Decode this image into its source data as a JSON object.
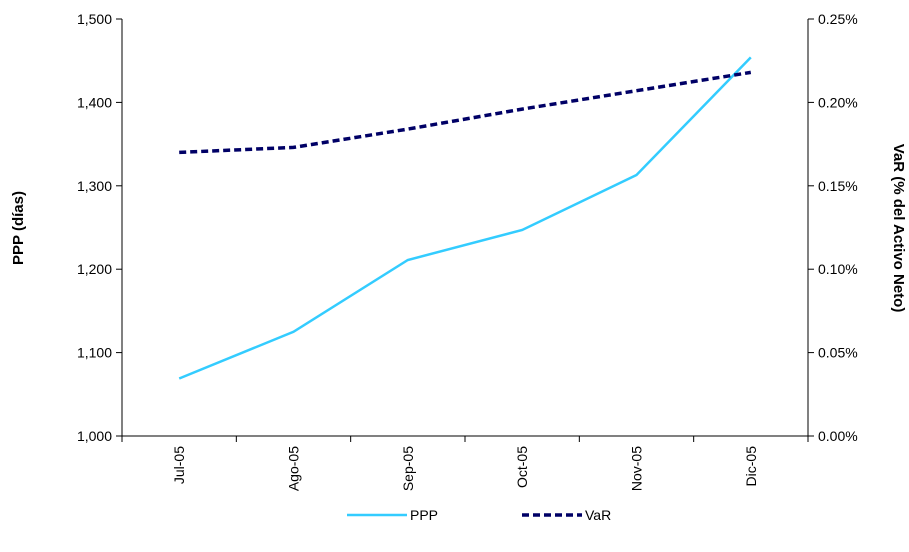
{
  "chart_data": {
    "type": "line",
    "categories": [
      "Jul-05",
      "Ago-05",
      "Sep-05",
      "Oct-05",
      "Nov-05",
      "Dic-05"
    ],
    "series": [
      {
        "name": "PPP",
        "axis": "left",
        "color": "#33ccff",
        "style": "solid",
        "values": [
          1069,
          1125,
          1211,
          1247,
          1313,
          1454
        ]
      },
      {
        "name": "VaR",
        "axis": "right",
        "color": "#000066",
        "style": "dashed",
        "values": [
          0.0017,
          0.00173,
          0.00184,
          0.00196,
          0.00207,
          0.00218
        ]
      }
    ],
    "y_left": {
      "label": "PPP (días)",
      "ylim": [
        1000,
        1500
      ],
      "ticks": [
        1000,
        1100,
        1200,
        1300,
        1400,
        1500
      ],
      "tick_labels": [
        "1,000",
        "1,100",
        "1,200",
        "1,300",
        "1,400",
        "1,500"
      ]
    },
    "y_right": {
      "label": "VaR (% del Activo Neto)",
      "ylim": [
        0,
        0.0025
      ],
      "ticks": [
        0,
        0.0005,
        0.001,
        0.0015,
        0.002,
        0.0025
      ],
      "tick_labels": [
        "0.00%",
        "0.05%",
        "0.10%",
        "0.15%",
        "0.20%",
        "0.25%"
      ]
    },
    "grid": false,
    "legend_position": "bottom"
  }
}
